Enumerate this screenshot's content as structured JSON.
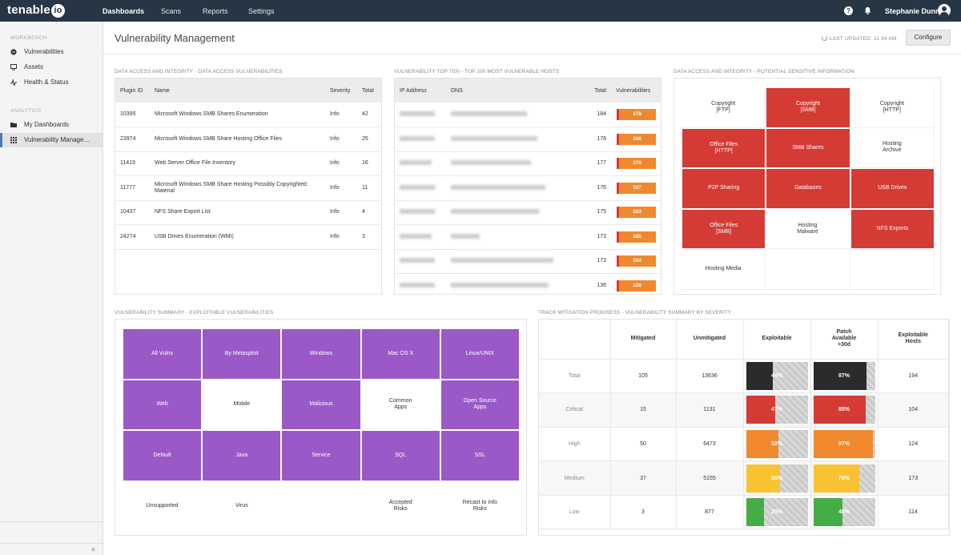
{
  "app": {
    "logo": "tenable",
    "logo_suffix": "io"
  },
  "nav": {
    "dashboards": "Dashboards",
    "scans": "Scans",
    "reports": "Reports",
    "settings": "Settings"
  },
  "user": {
    "name": "Stephanie Dunn"
  },
  "sidebar": {
    "workbench_heading": "WORKBENCH",
    "workbench_items": [
      {
        "label": "Vulnerabilities",
        "icon": "shield-icon"
      },
      {
        "label": "Assets",
        "icon": "monitor-icon"
      },
      {
        "label": "Health & Status",
        "icon": "pulse-icon"
      }
    ],
    "analytics_heading": "ANALYTICS",
    "analytics_items": [
      {
        "label": "My Dashboards",
        "icon": "folder-icon"
      },
      {
        "label": "Vulnerability Manage…",
        "icon": "grid-icon",
        "active": true
      }
    ]
  },
  "page": {
    "title": "Vulnerability Management",
    "last_updated": "LAST UPDATED: 11:34 AM",
    "configure": "Configure"
  },
  "panel1": {
    "title": "DATA ACCESS AND INTEGRITY - DATA ACCESS VULNERABILITIES",
    "columns": [
      "Plugin ID",
      "Name",
      "Severity",
      "Total"
    ],
    "rows": [
      [
        "10395",
        "Microsoft Windows SMB Shares Enumeration",
        "Info",
        "42"
      ],
      [
        "23974",
        "Microsoft Windows SMB Share Hosting Office Files",
        "Info",
        "25"
      ],
      [
        "11419",
        "Web Server Office File Inventory",
        "Info",
        "16"
      ],
      [
        "11777",
        "Microsoft Windows SMB Share Hosting Possibly Copyrighted Material",
        "Info",
        "11"
      ],
      [
        "10437",
        "NFS Share Export List",
        "Info",
        "4"
      ],
      [
        "24274",
        "USB Drives Enumeration (WMI)",
        "Info",
        "3"
      ]
    ]
  },
  "panel2": {
    "title": "VULNERABILITY TOP TEN - TOP 100 MOST VULNERABLE HOSTS",
    "columns": [
      "IP Address",
      "DNS",
      "Total",
      "Vulnerabilities"
    ],
    "rows": [
      {
        "total": "184",
        "vulns": "178"
      },
      {
        "total": "178",
        "vulns": "166"
      },
      {
        "total": "177",
        "vulns": "170"
      },
      {
        "total": "176",
        "vulns": "167"
      },
      {
        "total": "175",
        "vulns": "163"
      },
      {
        "total": "173",
        "vulns": "165"
      },
      {
        "total": "173",
        "vulns": "164"
      },
      {
        "total": "136",
        "vulns": "126"
      }
    ]
  },
  "panel3": {
    "title": "DATA ACCESS AND INTEGRITY - POTENTIAL SENSITIVE INFORMATION",
    "cells": [
      {
        "label": "Copyright\n[FTP]",
        "active": false
      },
      {
        "label": "Copyright\n[SMB]",
        "active": true
      },
      {
        "label": "Copyright\n[HTTP]",
        "active": false
      },
      {
        "label": "Office Files\n[HTTP]",
        "active": true
      },
      {
        "label": "SMB Shares",
        "active": true
      },
      {
        "label": "Hosting\nArchive",
        "active": false
      },
      {
        "label": "P2P Sharing",
        "active": true
      },
      {
        "label": "Databases",
        "active": true
      },
      {
        "label": "USB Drives",
        "active": true
      },
      {
        "label": "Office Files\n[SMB]",
        "active": true
      },
      {
        "label": "Hosting\nMalware",
        "active": false
      },
      {
        "label": "NFS Exports",
        "active": true
      },
      {
        "label": "Hosting Media",
        "active": false
      },
      {
        "label": "",
        "active": false
      },
      {
        "label": "",
        "active": false
      }
    ],
    "active_color": "#d43b35"
  },
  "panel4": {
    "title": "VULNERABILITY SUMMARY - EXPLOITABLE VULNERABILITIES",
    "active_color": "#9a59c7",
    "cells": [
      {
        "label": "All Vulns",
        "active": true
      },
      {
        "label": "By Metasploit",
        "active": true
      },
      {
        "label": "Windows",
        "active": true
      },
      {
        "label": "Mac OS X",
        "active": true
      },
      {
        "label": "Linux/UNIX",
        "active": true
      },
      {
        "label": "Web",
        "active": true
      },
      {
        "label": "Mobile",
        "active": false
      },
      {
        "label": "Malicious",
        "active": true
      },
      {
        "label": "Common\nApps",
        "active": false
      },
      {
        "label": "Open Source\nApps",
        "active": true
      },
      {
        "label": "Default",
        "active": true
      },
      {
        "label": "Java",
        "active": true
      },
      {
        "label": "Service",
        "active": true
      },
      {
        "label": "SQL",
        "active": true
      },
      {
        "label": "SSL",
        "active": true
      },
      {
        "label": "Unsupported",
        "active": false
      },
      {
        "label": "Virus",
        "active": false
      },
      {
        "label": "",
        "active": false
      },
      {
        "label": "Accepted\nRisks",
        "active": false
      },
      {
        "label": "Recast to Info\nRisks",
        "active": false
      }
    ]
  },
  "panel5": {
    "title": "TRACK MITIGATION PROGRESS - VULNERABILITY SUMMARY BY SEVERITY",
    "columns": [
      "Mitigated",
      "Unmitigated",
      "Exploitable",
      "Patch\nAvailable\n>30d",
      "Exploitable\nHosts"
    ],
    "rows": [
      {
        "label": "Total",
        "mitigated": "105",
        "unmitigated": "13636",
        "exploitable": "44%",
        "exploitable_frac": 0.44,
        "patch": "87%",
        "patch_frac": 0.87,
        "hosts": "194",
        "color": "#2b2b2b"
      },
      {
        "label": "Critical",
        "mitigated": "15",
        "unmitigated": "1131",
        "exploitable": "47%",
        "exploitable_frac": 0.47,
        "patch": "85%",
        "patch_frac": 0.85,
        "hosts": "104",
        "color": "#d43b35"
      },
      {
        "label": "High",
        "mitigated": "50",
        "unmitigated": "6473",
        "exploitable": "52%",
        "exploitable_frac": 0.52,
        "patch": "97%",
        "patch_frac": 0.97,
        "hosts": "124",
        "color": "#f0892e"
      },
      {
        "label": "Medium",
        "mitigated": "37",
        "unmitigated": "5155",
        "exploitable": "55%",
        "exploitable_frac": 0.55,
        "patch": "75%",
        "patch_frac": 0.75,
        "hosts": "173",
        "color": "#f8c232"
      },
      {
        "label": "Low",
        "mitigated": "3",
        "unmitigated": "877",
        "exploitable": "29%",
        "exploitable_frac": 0.29,
        "patch": "48%",
        "patch_frac": 0.48,
        "hosts": "114",
        "color": "#45ad46"
      }
    ]
  }
}
